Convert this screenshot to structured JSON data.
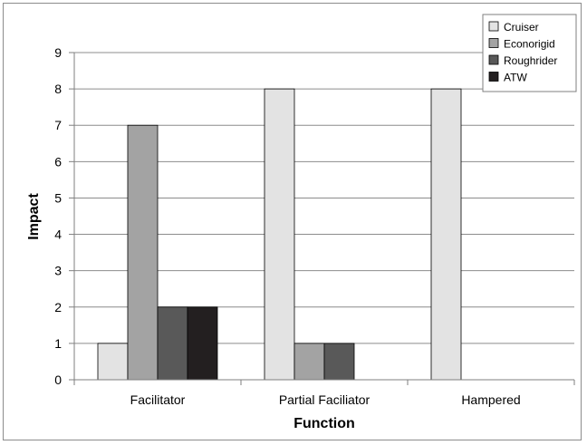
{
  "chart_data": {
    "type": "bar",
    "xlabel": "Function",
    "ylabel": "Impact",
    "categories": [
      "Facilitator",
      "Partial Faciliator",
      "Hampered"
    ],
    "series": [
      {
        "name": "Cruiser",
        "values": [
          1,
          8,
          8
        ],
        "color": "#e3e3e3"
      },
      {
        "name": "Econorigid",
        "values": [
          7,
          1,
          0
        ],
        "color": "#a3a3a3"
      },
      {
        "name": "Roughrider",
        "values": [
          2,
          1,
          0
        ],
        "color": "#595959"
      },
      {
        "name": "ATW",
        "values": [
          2,
          0,
          0
        ],
        "color": "#231f20"
      }
    ],
    "ylim": [
      0,
      9
    ],
    "yticks": [
      "0",
      "1",
      "2",
      "3",
      "4",
      "5",
      "6",
      "7",
      "8",
      "9"
    ],
    "grid": true,
    "legend_position": "top-right"
  }
}
